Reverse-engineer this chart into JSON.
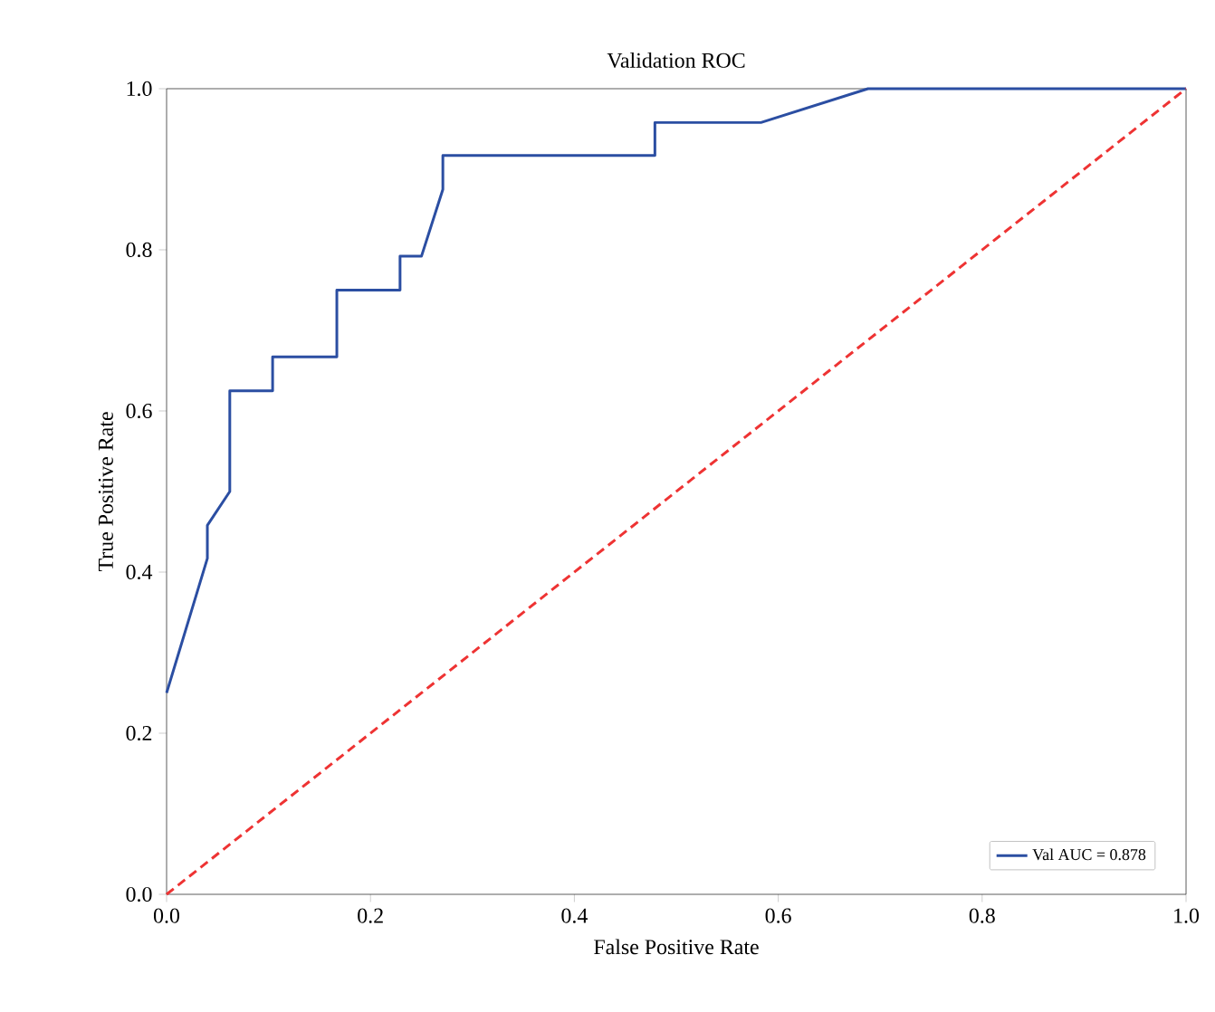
{
  "chart_data": {
    "type": "line",
    "title": "Validation ROC",
    "xlabel": "False Positive Rate",
    "ylabel": "True Positive Rate",
    "xlim": [
      0,
      1
    ],
    "ylim": [
      0,
      1
    ],
    "xticks": [
      {
        "value": 0,
        "label": "0.0"
      },
      0.2,
      0.4,
      0.6,
      0.8,
      {
        "value": 1,
        "label": "1.0"
      }
    ],
    "yticks": [
      {
        "value": 0,
        "label": "0.0"
      },
      0.2,
      0.4,
      0.6,
      0.8,
      {
        "value": 1,
        "label": "1.0"
      }
    ],
    "grid": false,
    "legend": "bottom right",
    "series": [
      {
        "name": "Val AUC = 0.878",
        "color": "#2b4ea2",
        "line_style": "solid",
        "x": [
          0,
          0.04,
          0.04,
          0.062,
          0.062,
          0.104,
          0.104,
          0.167,
          0.167,
          0.229,
          0.229,
          0.25,
          0.271,
          0.271,
          0.479,
          0.479,
          0.583,
          0.688,
          1
        ],
        "values": [
          0.25,
          0.417,
          0.458,
          0.5,
          0.625,
          0.625,
          0.667,
          0.667,
          0.75,
          0.75,
          0.792,
          0.792,
          0.875,
          0.917,
          0.917,
          0.958,
          0.958,
          1,
          1
        ]
      },
      {
        "color": "#ee3333",
        "line_style": "dashed",
        "x": [
          0,
          1
        ],
        "values": [
          0,
          1
        ]
      }
    ]
  }
}
